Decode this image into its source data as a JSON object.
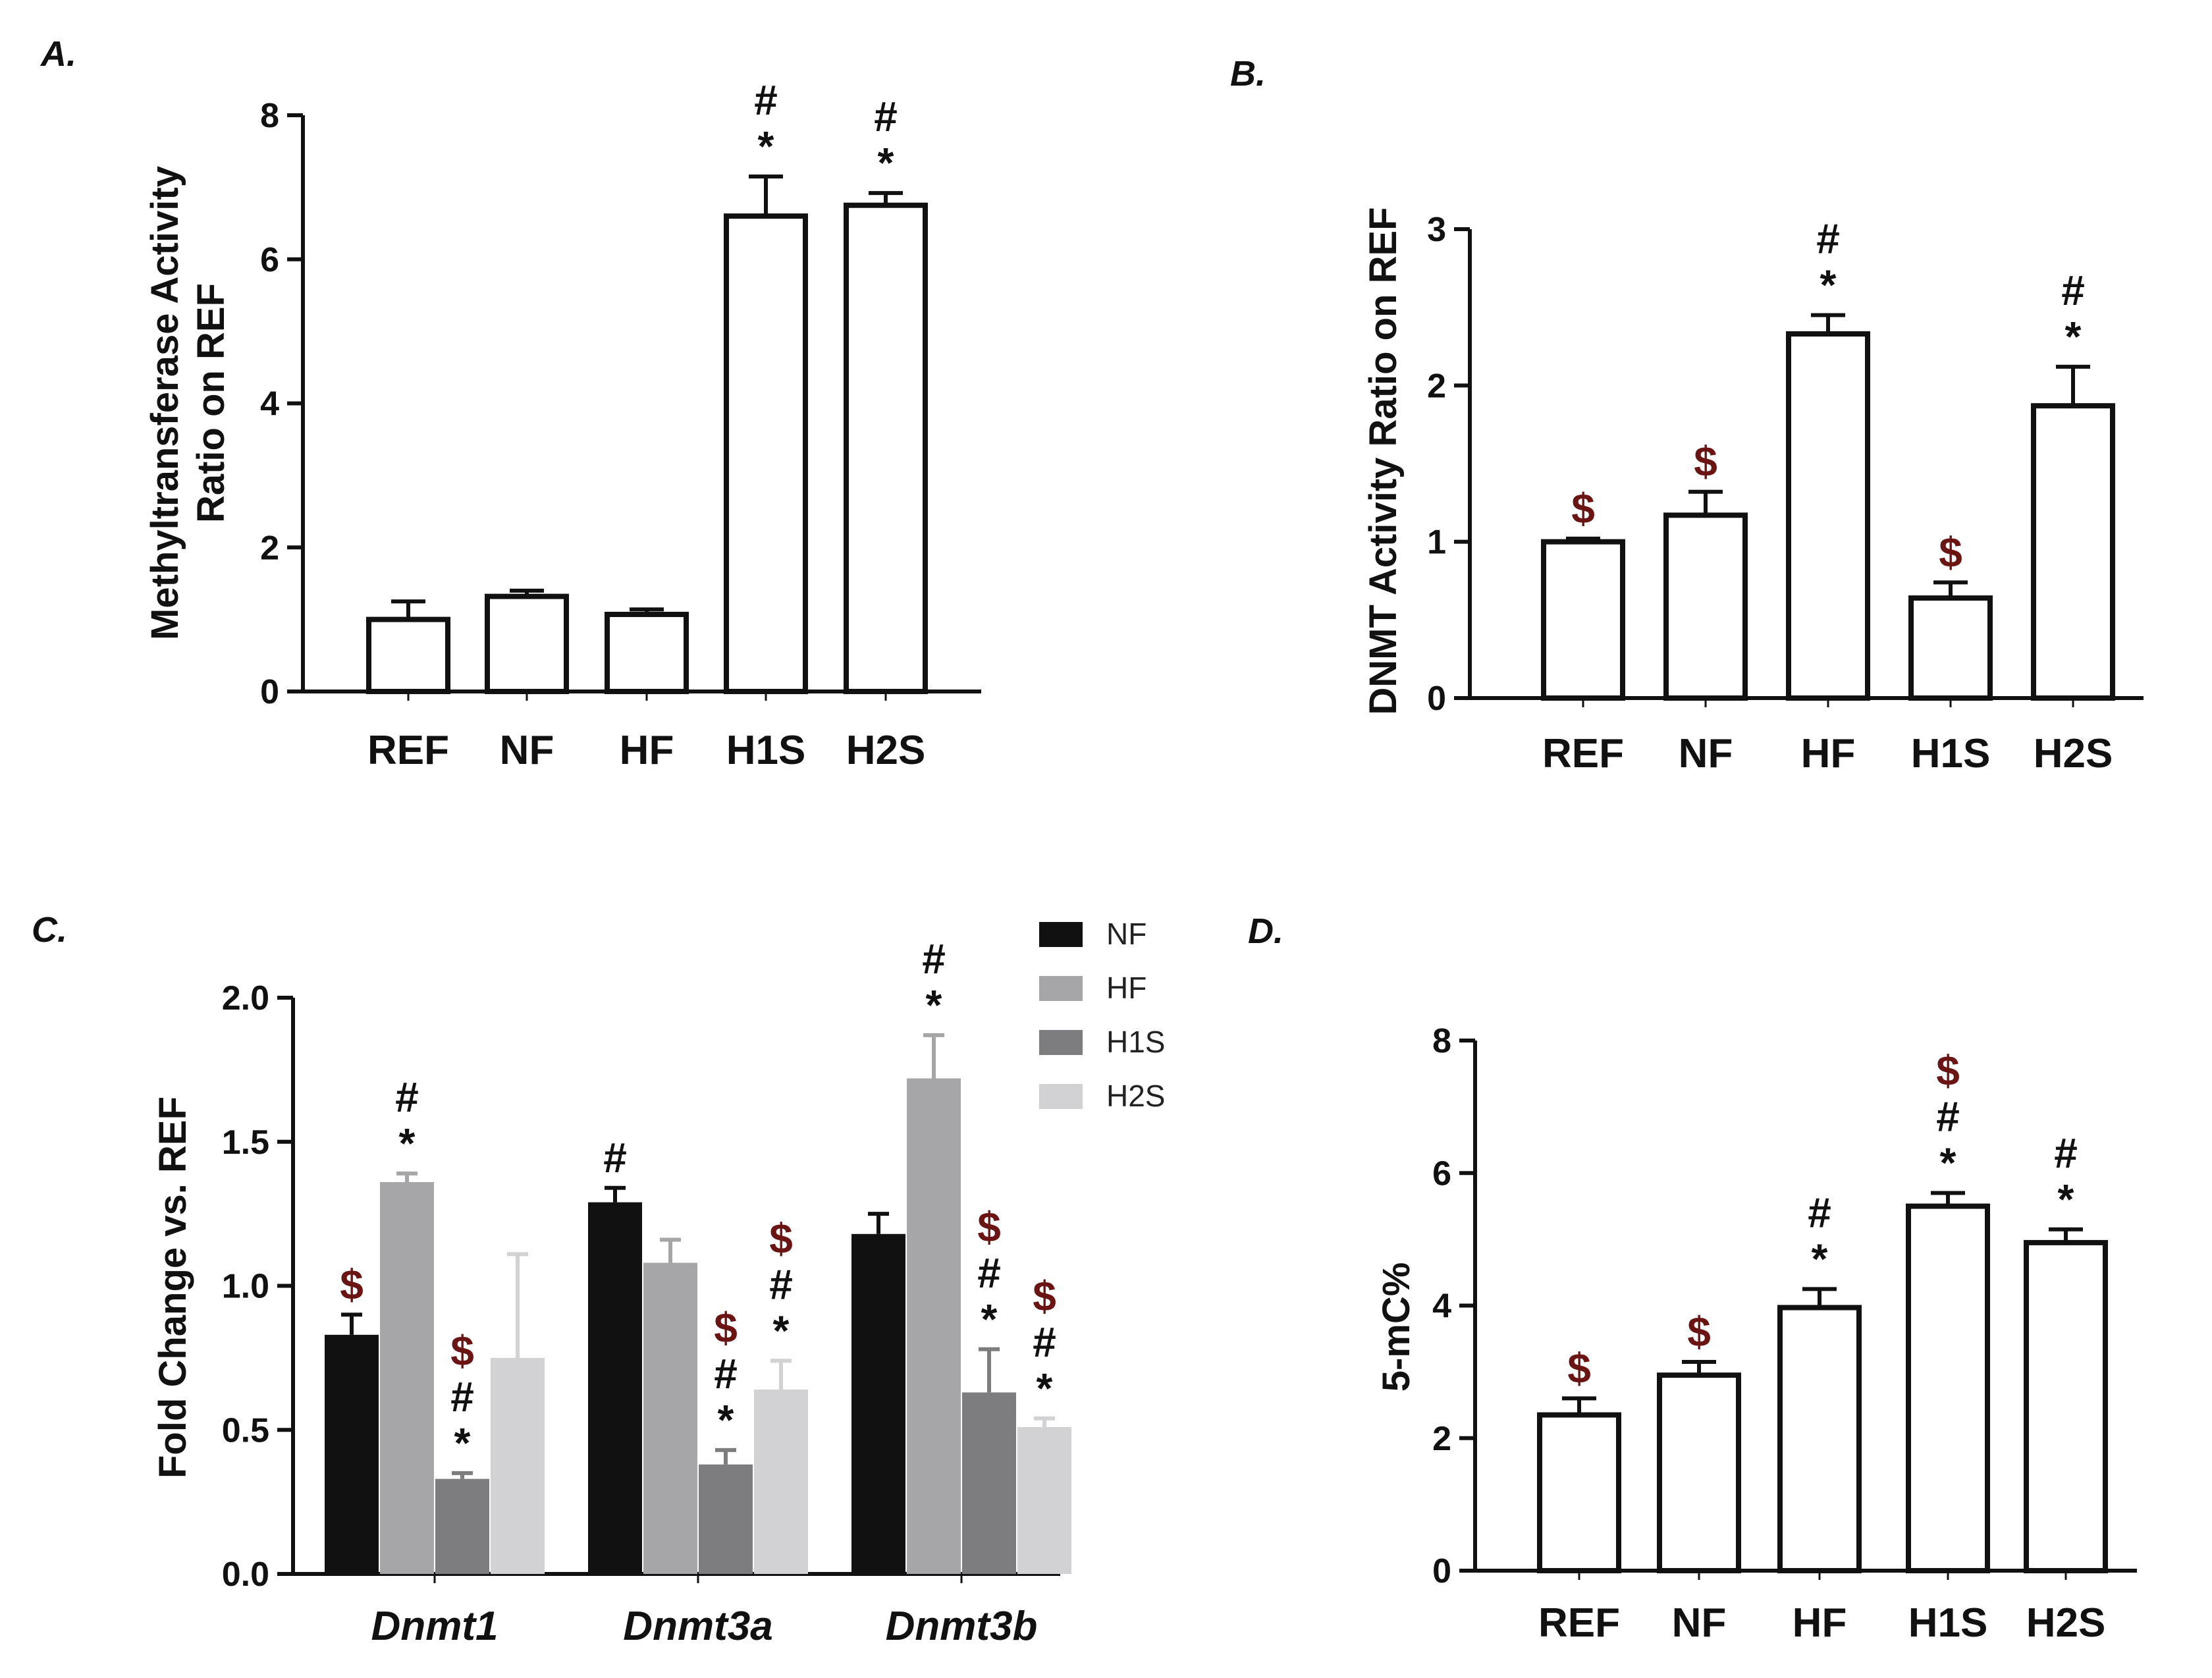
{
  "colors": {
    "axis": "#111111",
    "bar_outline": "#111111",
    "bar_fill_open": "#ffffff",
    "symbol_default": "#111111",
    "symbol_dollar": "#6b1414"
  },
  "chart_data": [
    {
      "panel": "A.",
      "type": "bar",
      "ylabel": "Methyltransferase Activity Ratio on REF",
      "ylabel_lines": [
        "Methyltransferase Activity",
        "Ratio on REF"
      ],
      "ylim": [
        0,
        8
      ],
      "yticks": [
        0,
        2,
        4,
        6,
        8
      ],
      "categories": [
        "REF",
        "NF",
        "HF",
        "H1S",
        "H2S"
      ],
      "values": [
        1.0,
        1.32,
        1.07,
        6.6,
        6.75
      ],
      "errors": [
        0.25,
        0.08,
        0.07,
        0.55,
        0.17
      ],
      "annotations": [
        [],
        [],
        [],
        [
          "#",
          "*"
        ],
        [
          "#",
          "*"
        ]
      ]
    },
    {
      "panel": "B.",
      "type": "bar",
      "ylabel": "DNMT Activity  Ratio on REF",
      "ylabel_lines": [
        "DNMT Activity  Ratio on REF"
      ],
      "ylim": [
        0,
        3
      ],
      "yticks": [
        0,
        1,
        2,
        3
      ],
      "categories": [
        "REF",
        "NF",
        "HF",
        "H1S",
        "H2S"
      ],
      "values": [
        1.0,
        1.17,
        2.33,
        0.64,
        1.87
      ],
      "errors": [
        0.02,
        0.15,
        0.12,
        0.1,
        0.25
      ],
      "annotations": [
        [
          "$"
        ],
        [
          "$"
        ],
        [
          "#",
          "*"
        ],
        [
          "$"
        ],
        [
          "#",
          "*"
        ]
      ]
    },
    {
      "panel": "C.",
      "type": "bar",
      "grouped": true,
      "ylabel": "Fold Change vs. REF",
      "ylabel_lines": [
        "Fold Change vs. REF"
      ],
      "ylim": [
        0,
        2
      ],
      "yticks": [
        "0.0",
        "0.5",
        "1.0",
        "1.5",
        "2.0"
      ],
      "categories": [
        "Dnmt1",
        "Dnmt3a",
        "Dnmt3b"
      ],
      "series": [
        {
          "name": "NF",
          "color": "#111111",
          "values": [
            0.83,
            1.29,
            1.18
          ],
          "errors": [
            0.07,
            0.05,
            0.07
          ],
          "annotations": [
            [
              "$"
            ],
            [
              "#"
            ],
            []
          ]
        },
        {
          "name": "HF",
          "color": "#a6a6a8",
          "values": [
            1.36,
            1.08,
            1.72
          ],
          "errors": [
            0.03,
            0.08,
            0.15
          ],
          "annotations": [
            [
              "#",
              "*"
            ],
            [],
            [
              "#",
              "*"
            ]
          ]
        },
        {
          "name": "H1S",
          "color": "#7d7d7f",
          "values": [
            0.33,
            0.38,
            0.63
          ],
          "errors": [
            0.02,
            0.05,
            0.15
          ],
          "annotations": [
            [
              "$",
              "#",
              "*"
            ],
            [
              "$",
              "#",
              "*"
            ],
            [
              "$",
              "#",
              "*"
            ]
          ]
        },
        {
          "name": "H2S",
          "color": "#d2d2d4",
          "values": [
            0.75,
            0.64,
            0.51
          ],
          "errors": [
            0.36,
            0.1,
            0.03
          ],
          "annotations": [
            [],
            [
              "$",
              "#",
              "*"
            ],
            [
              "$",
              "#",
              "*"
            ]
          ]
        }
      ],
      "legend": [
        "NF",
        "HF",
        "H1S",
        "H2S"
      ]
    },
    {
      "panel": "D.",
      "type": "bar",
      "ylabel": "5-mC%",
      "ylabel_lines": [
        "5-mC%"
      ],
      "ylim": [
        0,
        8
      ],
      "yticks": [
        0,
        2,
        4,
        6,
        8
      ],
      "categories": [
        "REF",
        "NF",
        "HF",
        "H1S",
        "H2S"
      ],
      "values": [
        2.35,
        2.95,
        3.97,
        5.5,
        4.95
      ],
      "errors": [
        0.25,
        0.2,
        0.28,
        0.2,
        0.2
      ],
      "annotations": [
        [
          "$"
        ],
        [
          "$"
        ],
        [
          "#",
          "*"
        ],
        [
          "$",
          "#",
          "*"
        ],
        [
          "#",
          "*"
        ]
      ]
    }
  ]
}
